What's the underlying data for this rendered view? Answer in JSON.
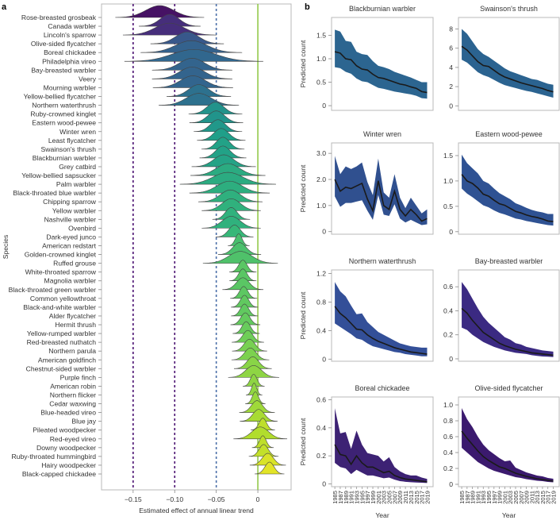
{
  "chart_data": [
    {
      "type": "ridgeline",
      "panel_label": "a",
      "xlabel": "Estimated effect of annual linear trend",
      "ylabel": "Species",
      "xlim": [
        -0.188,
        0.04
      ],
      "xticks": [
        -0.15,
        -0.1,
        -0.05,
        0
      ],
      "xtick_labels": [
        "−0.15",
        "−0.10",
        "−0.05",
        "0"
      ],
      "reference_lines": [
        {
          "value": -0.15,
          "color": "#4b1272",
          "style": "dashed"
        },
        {
          "value": -0.1,
          "color": "#4b1272",
          "style": "dashed"
        },
        {
          "value": -0.05,
          "color": "#4a6fa8",
          "style": "dashed"
        },
        {
          "value": 0,
          "color": "#8cc63f",
          "style": "solid"
        }
      ],
      "species": [
        {
          "name": "Rose-breasted grosbeak",
          "mean": -0.118,
          "sd": 0.0166
        },
        {
          "name": "Canada warbler",
          "mean": -0.106,
          "sd": 0.0115
        },
        {
          "name": "Lincoln's sparrow",
          "mean": -0.106,
          "sd": 0.0175
        },
        {
          "name": "Olive-sided flycatcher",
          "mean": -0.085,
          "sd": 0.0137
        },
        {
          "name": "Boreal chickadee",
          "mean": -0.08,
          "sd": 0.019
        },
        {
          "name": "Philadelphia vireo",
          "mean": -0.077,
          "sd": 0.026
        },
        {
          "name": "Bay-breasted warbler",
          "mean": -0.079,
          "sd": 0.015
        },
        {
          "name": "Veery",
          "mean": -0.079,
          "sd": 0.015
        },
        {
          "name": "Mourning warbler",
          "mean": -0.078,
          "sd": 0.015
        },
        {
          "name": "Yellow-bellied flycatcher",
          "mean": -0.071,
          "sd": 0.012
        },
        {
          "name": "Northern waterthrush",
          "mean": -0.071,
          "sd": 0.015
        },
        {
          "name": "Ruby-crowned kinglet",
          "mean": -0.051,
          "sd": 0.01
        },
        {
          "name": "Eastern wood-pewee",
          "mean": -0.05,
          "sd": 0.01
        },
        {
          "name": "Winter wren",
          "mean": -0.048,
          "sd": 0.009
        },
        {
          "name": "Least flycatcher",
          "mean": -0.044,
          "sd": 0.009
        },
        {
          "name": "Swainson's thrush",
          "mean": -0.042,
          "sd": 0.008
        },
        {
          "name": "Blackburnian warbler",
          "mean": -0.042,
          "sd": 0.0087
        },
        {
          "name": "Grey catbird",
          "mean": -0.041,
          "sd": 0.012
        },
        {
          "name": "Yellow-bellied sapsucker",
          "mean": -0.036,
          "sd": 0.014
        },
        {
          "name": "Palm warbler",
          "mean": -0.036,
          "sd": 0.018
        },
        {
          "name": "Black-throated blue warbler",
          "mean": -0.034,
          "sd": 0.015
        },
        {
          "name": "Chipping sparrow",
          "mean": -0.033,
          "sd": 0.012
        },
        {
          "name": "Yellow warbler",
          "mean": -0.032,
          "sd": 0.011
        },
        {
          "name": "Nashville warbler",
          "mean": -0.032,
          "sd": 0.007
        },
        {
          "name": "Ovenbird",
          "mean": -0.032,
          "sd": 0.011
        },
        {
          "name": "Dark-eyed junco",
          "mean": -0.028,
          "sd": 0.007
        },
        {
          "name": "American redstart",
          "mean": -0.023,
          "sd": 0.004
        },
        {
          "name": "Golden-crowned kinglet",
          "mean": -0.022,
          "sd": 0.008
        },
        {
          "name": "Ruffed grouse",
          "mean": -0.021,
          "sd": 0.014
        },
        {
          "name": "White-throated sparrow",
          "mean": -0.018,
          "sd": 0.005
        },
        {
          "name": "Magnolia warbler",
          "mean": -0.018,
          "sd": 0.005
        },
        {
          "name": "Black-throated green warbler",
          "mean": -0.018,
          "sd": 0.0076
        },
        {
          "name": "Common yellowthroat",
          "mean": -0.017,
          "sd": 0.005
        },
        {
          "name": "Black-and-white warbler",
          "mean": -0.016,
          "sd": 0.005
        },
        {
          "name": "Alder flycatcher",
          "mean": -0.016,
          "sd": 0.005
        },
        {
          "name": "Hermit thrush",
          "mean": -0.015,
          "sd": 0.0055
        },
        {
          "name": "Yellow-rumped warbler",
          "mean": -0.014,
          "sd": 0.005
        },
        {
          "name": "Red-breasted nuthatch",
          "mean": -0.012,
          "sd": 0.006
        },
        {
          "name": "Northern parula",
          "mean": -0.01,
          "sd": 0.0065
        },
        {
          "name": "American goldfinch",
          "mean": -0.009,
          "sd": 0.007
        },
        {
          "name": "Chestnut-sided warbler",
          "mean": -0.006,
          "sd": 0.007
        },
        {
          "name": "Purple finch",
          "mean": -0.005,
          "sd": 0.0095
        },
        {
          "name": "American robin",
          "mean": -0.005,
          "sd": 0.004
        },
        {
          "name": "Northern flicker",
          "mean": -0.0045,
          "sd": 0.003
        },
        {
          "name": "Cedar waxwing",
          "mean": -0.003,
          "sd": 0.0037
        },
        {
          "name": "Blue-headed vireo",
          "mean": -0.001,
          "sd": 0.0066
        },
        {
          "name": "Blue jay",
          "mean": 0.001,
          "sd": 0.007
        },
        {
          "name": "Pileated woodpecker",
          "mean": 0.006,
          "sd": 0.0045
        },
        {
          "name": "Red-eyed vireo",
          "mean": 0.003,
          "sd": 0.01
        },
        {
          "name": "Downy woodpecker",
          "mean": 0.006,
          "sd": 0.004
        },
        {
          "name": "Ruby-throated hummingbird",
          "mean": 0.007,
          "sd": 0.0055
        },
        {
          "name": "Hairy woodpecker",
          "mean": 0.012,
          "sd": 0.0067
        },
        {
          "name": "Black-capped chickadee",
          "mean": 0.014,
          "sd": 0.0055
        }
      ]
    },
    {
      "type": "area-line",
      "panel_label": "b",
      "xlabel": "Year",
      "ylabel": "Predicted count",
      "years": [
        1985,
        1987,
        1989,
        1991,
        1993,
        1995,
        1997,
        1999,
        2001,
        2003,
        2005,
        2007,
        2009,
        2011,
        2013,
        2015,
        2017,
        2019
      ],
      "year_labels": [
        "1985",
        "1987",
        "1989",
        "1991",
        "1993",
        "1995",
        "1997",
        "1999",
        "2001",
        "2003",
        "2005",
        "2007",
        "2009",
        "2011",
        "2013",
        "2015",
        "2017",
        "2019"
      ],
      "panels": [
        {
          "title": "Blackburnian warbler",
          "color": "#2c6590",
          "ylim": [
            -0.1,
            1.88
          ],
          "yticks": [
            0,
            0.5,
            1.0,
            1.5
          ],
          "ytick_labels": [
            "0",
            "0.5",
            "1.0",
            "1.5"
          ],
          "mean": [
            1.15,
            1.12,
            1.0,
            0.98,
            0.85,
            0.78,
            0.76,
            0.67,
            0.6,
            0.58,
            0.54,
            0.5,
            0.46,
            0.44,
            0.4,
            0.37,
            0.3,
            0.28
          ],
          "lower": [
            0.82,
            0.8,
            0.72,
            0.68,
            0.58,
            0.52,
            0.5,
            0.44,
            0.38,
            0.36,
            0.33,
            0.3,
            0.28,
            0.26,
            0.24,
            0.21,
            0.16,
            0.15
          ],
          "upper": [
            1.62,
            1.58,
            1.38,
            1.36,
            1.15,
            1.1,
            1.08,
            0.95,
            0.85,
            0.82,
            0.78,
            0.72,
            0.68,
            0.64,
            0.6,
            0.55,
            0.5,
            0.5
          ]
        },
        {
          "title": "Swainson's thrush",
          "color": "#2b6390",
          "ylim": [
            -0.47,
            9.2
          ],
          "yticks": [
            0,
            2,
            4,
            6,
            8
          ],
          "ytick_labels": [
            "0",
            "2",
            "4",
            "6",
            "8"
          ],
          "mean": [
            6.2,
            5.8,
            5.2,
            4.6,
            4.2,
            4.1,
            3.7,
            3.3,
            3.0,
            2.8,
            2.6,
            2.4,
            2.25,
            2.1,
            1.95,
            1.8,
            1.6,
            1.45
          ],
          "lower": [
            4.8,
            4.5,
            4.0,
            3.5,
            3.2,
            3.0,
            2.7,
            2.4,
            2.15,
            2.0,
            1.85,
            1.7,
            1.55,
            1.45,
            1.3,
            1.15,
            1.0,
            0.85
          ],
          "upper": [
            8.0,
            7.5,
            6.7,
            5.9,
            5.4,
            5.1,
            4.7,
            4.3,
            3.9,
            3.6,
            3.4,
            3.2,
            3.0,
            2.8,
            2.7,
            2.5,
            2.3,
            2.2
          ]
        },
        {
          "title": "Winter wren",
          "color": "#30508f",
          "ylim": [
            -0.1,
            3.4
          ],
          "yticks": [
            0,
            1,
            2,
            3
          ],
          "ytick_labels": [
            "0",
            "1.0",
            "2.0",
            "3.0"
          ],
          "mean": [
            2.0,
            1.55,
            1.7,
            1.65,
            1.75,
            1.85,
            1.25,
            0.8,
            1.95,
            1.0,
            0.85,
            1.55,
            0.85,
            0.6,
            0.85,
            0.65,
            0.4,
            0.5
          ],
          "lower": [
            1.35,
            0.95,
            1.1,
            1.1,
            1.15,
            1.2,
            0.8,
            0.45,
            1.4,
            0.65,
            0.6,
            1.05,
            0.5,
            0.35,
            0.45,
            0.35,
            0.25,
            0.28
          ],
          "upper": [
            2.9,
            2.2,
            2.5,
            2.4,
            2.5,
            2.65,
            1.9,
            1.4,
            2.8,
            1.5,
            1.3,
            2.2,
            1.3,
            0.9,
            1.3,
            1.0,
            0.7,
            0.85
          ]
        },
        {
          "title": "Eastern wood-pewee",
          "color": "#2f5293",
          "ylim": [
            -0.05,
            1.75
          ],
          "yticks": [
            0,
            0.5,
            1.0,
            1.5
          ],
          "ytick_labels": [
            "0",
            "0.5",
            "1.0",
            "1.5"
          ],
          "mean": [
            1.13,
            1.0,
            0.95,
            0.86,
            0.74,
            0.7,
            0.62,
            0.55,
            0.52,
            0.46,
            0.4,
            0.37,
            0.33,
            0.3,
            0.28,
            0.25,
            0.21,
            0.2
          ],
          "lower": [
            0.85,
            0.75,
            0.68,
            0.6,
            0.52,
            0.48,
            0.42,
            0.37,
            0.34,
            0.3,
            0.26,
            0.24,
            0.21,
            0.19,
            0.17,
            0.15,
            0.13,
            0.12
          ],
          "upper": [
            1.52,
            1.35,
            1.25,
            1.15,
            1.0,
            0.95,
            0.85,
            0.76,
            0.7,
            0.64,
            0.56,
            0.52,
            0.47,
            0.43,
            0.4,
            0.38,
            0.35,
            0.35
          ]
        },
        {
          "title": "Northern waterthrush",
          "color": "#334f98",
          "ylim": [
            -0.03,
            1.25
          ],
          "yticks": [
            0,
            0.4,
            0.8,
            1.2
          ],
          "ytick_labels": [
            "0",
            "0.4",
            "0.8",
            "1.2"
          ],
          "mean": [
            0.74,
            0.64,
            0.58,
            0.5,
            0.42,
            0.41,
            0.34,
            0.29,
            0.25,
            0.22,
            0.19,
            0.16,
            0.14,
            0.12,
            0.1,
            0.09,
            0.08,
            0.07
          ],
          "lower": [
            0.5,
            0.45,
            0.4,
            0.35,
            0.29,
            0.27,
            0.22,
            0.18,
            0.16,
            0.14,
            0.12,
            0.1,
            0.09,
            0.07,
            0.06,
            0.05,
            0.04,
            0.04
          ],
          "upper": [
            1.08,
            0.95,
            0.88,
            0.75,
            0.63,
            0.64,
            0.52,
            0.45,
            0.38,
            0.34,
            0.3,
            0.26,
            0.22,
            0.2,
            0.18,
            0.17,
            0.16,
            0.16
          ]
        },
        {
          "title": "Bay-breasted warbler",
          "color": "#3b2a82",
          "ylim": [
            -0.02,
            0.74
          ],
          "yticks": [
            0,
            0.2,
            0.4,
            0.6
          ],
          "ytick_labels": [
            "0",
            "0.2",
            "0.4",
            "0.6"
          ],
          "mean": [
            0.42,
            0.38,
            0.32,
            0.27,
            0.22,
            0.19,
            0.16,
            0.13,
            0.11,
            0.095,
            0.08,
            0.07,
            0.06,
            0.05,
            0.045,
            0.04,
            0.035,
            0.03
          ],
          "lower": [
            0.26,
            0.24,
            0.2,
            0.17,
            0.14,
            0.12,
            0.1,
            0.085,
            0.07,
            0.06,
            0.05,
            0.045,
            0.04,
            0.03,
            0.025,
            0.02,
            0.018,
            0.015
          ],
          "upper": [
            0.64,
            0.58,
            0.5,
            0.42,
            0.35,
            0.3,
            0.26,
            0.22,
            0.18,
            0.16,
            0.13,
            0.12,
            0.1,
            0.09,
            0.08,
            0.07,
            0.065,
            0.06
          ]
        },
        {
          "title": "Boreal chickadee",
          "color": "#3d2274",
          "ylim": [
            -0.02,
            0.62
          ],
          "yticks": [
            0,
            0.2,
            0.4,
            0.6
          ],
          "ytick_labels": [
            "0",
            "0.2",
            "0.4",
            "0.6"
          ],
          "mean": [
            0.28,
            0.21,
            0.2,
            0.14,
            0.2,
            0.15,
            0.12,
            0.12,
            0.1,
            0.08,
            0.09,
            0.06,
            0.045,
            0.035,
            0.03,
            0.025,
            0.02,
            0.015
          ],
          "lower": [
            0.15,
            0.12,
            0.11,
            0.07,
            0.1,
            0.08,
            0.06,
            0.06,
            0.05,
            0.04,
            0.045,
            0.03,
            0.02,
            0.015,
            0.012,
            0.01,
            0.008,
            0.006
          ],
          "upper": [
            0.54,
            0.36,
            0.37,
            0.25,
            0.38,
            0.28,
            0.22,
            0.21,
            0.2,
            0.16,
            0.19,
            0.12,
            0.09,
            0.07,
            0.06,
            0.06,
            0.045,
            0.035
          ]
        },
        {
          "title": "Olive-sided flycatcher",
          "color": "#3b1a6e",
          "ylim": [
            -0.03,
            1.1
          ],
          "yticks": [
            0,
            0.2,
            0.4,
            0.6,
            0.8,
            1.0
          ],
          "ytick_labels": [
            "0",
            "0.2",
            "0.4",
            "0.6",
            "0.8",
            "1.0"
          ],
          "mean": [
            0.67,
            0.58,
            0.5,
            0.42,
            0.35,
            0.3,
            0.26,
            0.22,
            0.2,
            0.17,
            0.14,
            0.12,
            0.1,
            0.085,
            0.07,
            0.06,
            0.05,
            0.04
          ],
          "lower": [
            0.46,
            0.4,
            0.34,
            0.28,
            0.24,
            0.2,
            0.17,
            0.15,
            0.13,
            0.11,
            0.09,
            0.08,
            0.065,
            0.055,
            0.045,
            0.04,
            0.03,
            0.025
          ],
          "upper": [
            0.96,
            0.82,
            0.72,
            0.6,
            0.5,
            0.43,
            0.38,
            0.33,
            0.29,
            0.3,
            0.21,
            0.18,
            0.15,
            0.13,
            0.11,
            0.1,
            0.08,
            0.07
          ]
        }
      ]
    }
  ]
}
